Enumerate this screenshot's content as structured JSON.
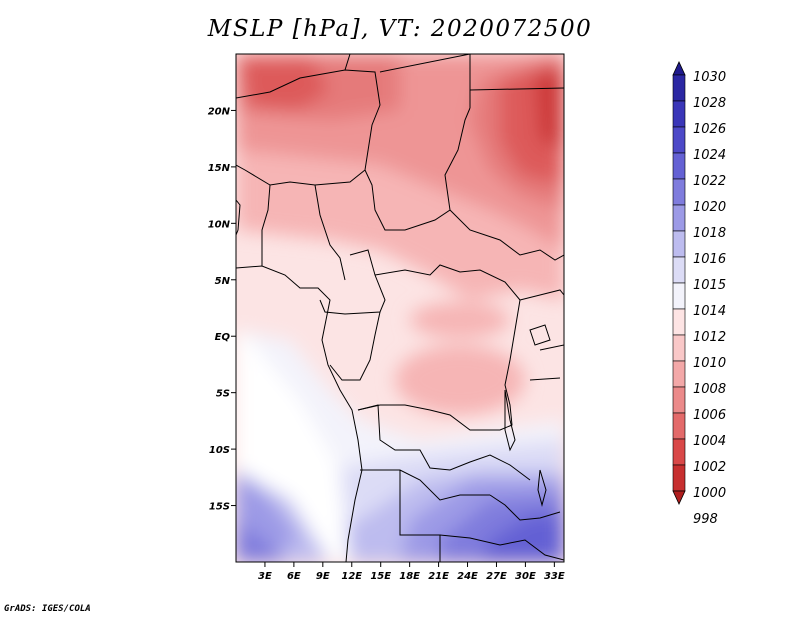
{
  "title": "MSLP [hPa], VT: 2020072500",
  "footer": "GrADS: IGES/COLA",
  "map": {
    "lon_range": [
      0,
      34
    ],
    "lat_range": [
      -20,
      25
    ],
    "x_ticks": [
      "3E",
      "6E",
      "9E",
      "12E",
      "15E",
      "18E",
      "21E",
      "24E",
      "27E",
      "30E",
      "33E"
    ],
    "y_ticks": [
      "20N",
      "15N",
      "10N",
      "5N",
      "EQ",
      "5S",
      "10S",
      "15S"
    ],
    "field": "mean sea level pressure"
  },
  "colorbar": {
    "levels": [
      "1030",
      "1028",
      "1026",
      "1024",
      "1022",
      "1020",
      "1018",
      "1016",
      "1015",
      "1014",
      "1012",
      "1010",
      "1008",
      "1006",
      "1004",
      "1002",
      "1000",
      "998"
    ],
    "colors": [
      "#1f1a8c",
      "#2b27a3",
      "#3a36b8",
      "#4d49c8",
      "#6461d4",
      "#7f7cdd",
      "#9c9ae6",
      "#bdbcef",
      "#dcdcf6",
      "#f3f3fb",
      "#fde4e4",
      "#f9c8c8",
      "#f3a8a8",
      "#eb8a8a",
      "#e36a6a",
      "#d94848",
      "#c72f2f",
      "#b01e1e"
    ]
  }
}
